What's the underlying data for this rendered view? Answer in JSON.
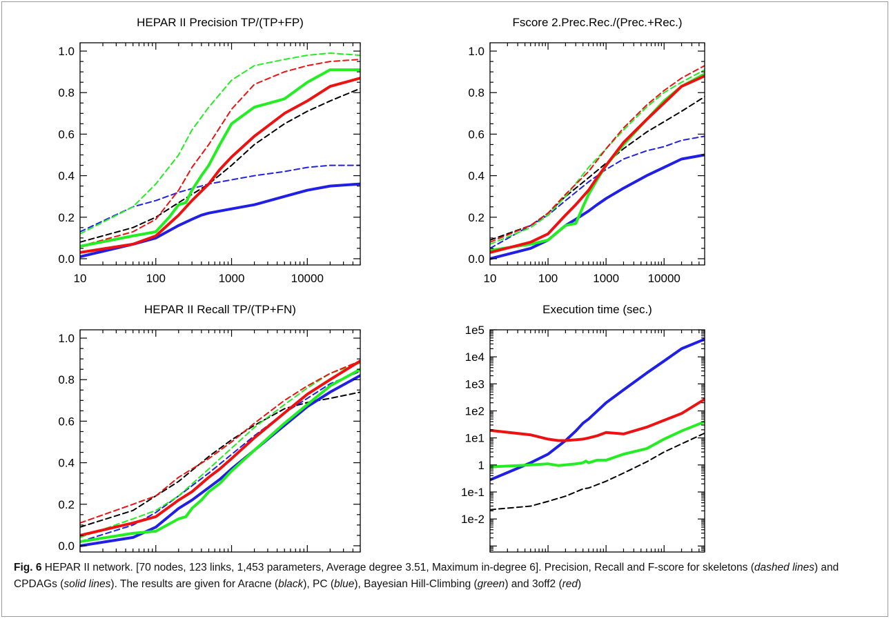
{
  "caption": {
    "label": "Fig. 6",
    "p1": " HEPAR II network. [70 nodes, 123 links, 1,453 parameters, Average degree 3.51, Maximum in-degree 6]. Precision, Recall and F-score for skeletons (",
    "e1": "dashed lines",
    "p2": ") and CPDAGs (",
    "e2": "solid lines",
    "p3": "). The results are given for Aracne (",
    "e3": "black",
    "p4": "), PC (",
    "e4": "blue",
    "p5": "), Bayesian Hill-Climbing (",
    "e5": "green",
    "p6": ") and 3off2 (",
    "e6": "red",
    "p7": ")"
  },
  "colors": {
    "black": "#000000",
    "blue": "#1f1fe6",
    "green": "#22ee22",
    "red": "#ee1111"
  },
  "chart_data": [
    {
      "id": "precision",
      "type": "line",
      "title": "HEPAR II  Precision  TP/(TP+FP)",
      "xscale": "log",
      "xlim": [
        10,
        50000
      ],
      "xticks": [
        10,
        100,
        1000,
        10000
      ],
      "xtick_labels": [
        "10",
        "100",
        "1000",
        "10000"
      ],
      "yscale": "linear",
      "ylim": [
        -0.03,
        1.04
      ],
      "yticks": [
        0,
        0.2,
        0.4,
        0.6,
        0.8,
        1.0
      ],
      "ytick_labels": [
        "0.0",
        "0.2",
        "0.4",
        "0.6",
        "0.8",
        "1.0"
      ],
      "series": [
        {
          "color": "black",
          "style": "dashed",
          "x": [
            10,
            50,
            100,
            200,
            500,
            1000,
            2000,
            5000,
            10000,
            20000,
            50000
          ],
          "y": [
            0.08,
            0.15,
            0.2,
            0.27,
            0.36,
            0.45,
            0.55,
            0.65,
            0.71,
            0.76,
            0.82
          ]
        },
        {
          "color": "blue",
          "style": "dashed",
          "x": [
            10,
            50,
            100,
            200,
            500,
            1000,
            2000,
            5000,
            10000,
            20000,
            50000
          ],
          "y": [
            0.13,
            0.25,
            0.28,
            0.32,
            0.36,
            0.38,
            0.4,
            0.42,
            0.44,
            0.45,
            0.45
          ]
        },
        {
          "color": "green",
          "style": "dashed",
          "x": [
            10,
            50,
            100,
            200,
            300,
            500,
            1000,
            2000,
            5000,
            10000,
            20000,
            50000
          ],
          "y": [
            0.12,
            0.25,
            0.36,
            0.5,
            0.62,
            0.73,
            0.86,
            0.93,
            0.96,
            0.98,
            0.99,
            0.98
          ]
        },
        {
          "color": "red",
          "style": "dashed",
          "x": [
            10,
            50,
            100,
            200,
            300,
            500,
            1000,
            2000,
            5000,
            10000,
            20000,
            50000
          ],
          "y": [
            0.06,
            0.13,
            0.19,
            0.33,
            0.44,
            0.55,
            0.72,
            0.84,
            0.9,
            0.93,
            0.95,
            0.96
          ]
        },
        {
          "color": "blue",
          "style": "solid",
          "x": [
            10,
            50,
            100,
            200,
            300,
            400,
            500,
            700,
            1000,
            2000,
            5000,
            10000,
            20000,
            50000
          ],
          "y": [
            0.01,
            0.07,
            0.1,
            0.16,
            0.19,
            0.21,
            0.22,
            0.23,
            0.24,
            0.26,
            0.3,
            0.33,
            0.35,
            0.36
          ]
        },
        {
          "color": "green",
          "style": "solid",
          "x": [
            10,
            50,
            100,
            150,
            200,
            250,
            300,
            400,
            500,
            700,
            1000,
            2000,
            5000,
            10000,
            20000,
            50000
          ],
          "y": [
            0.06,
            0.11,
            0.13,
            0.2,
            0.26,
            0.27,
            0.33,
            0.4,
            0.45,
            0.55,
            0.65,
            0.73,
            0.77,
            0.85,
            0.91,
            0.91
          ]
        },
        {
          "color": "red",
          "style": "solid",
          "x": [
            10,
            50,
            100,
            200,
            300,
            500,
            700,
            1000,
            2000,
            5000,
            10000,
            20000,
            50000
          ],
          "y": [
            0.03,
            0.07,
            0.11,
            0.21,
            0.28,
            0.36,
            0.43,
            0.49,
            0.59,
            0.7,
            0.76,
            0.83,
            0.87
          ]
        }
      ]
    },
    {
      "id": "fscore",
      "type": "line",
      "title": "Fscore  2.Prec.Rec./(Prec.+Rec.)",
      "xscale": "log",
      "xlim": [
        10,
        50000
      ],
      "xticks": [
        10,
        100,
        1000,
        10000
      ],
      "xtick_labels": [
        "10",
        "100",
        "1000",
        "10000"
      ],
      "yscale": "linear",
      "ylim": [
        -0.03,
        1.04
      ],
      "yticks": [
        0,
        0.2,
        0.4,
        0.6,
        0.8,
        1.0
      ],
      "ytick_labels": [
        "0.0",
        "0.2",
        "0.4",
        "0.6",
        "0.8",
        "1.0"
      ],
      "series": [
        {
          "color": "black",
          "style": "dashed",
          "x": [
            10,
            50,
            100,
            200,
            500,
            1000,
            2000,
            5000,
            10000,
            20000,
            50000
          ],
          "y": [
            0.09,
            0.16,
            0.22,
            0.3,
            0.39,
            0.46,
            0.53,
            0.61,
            0.66,
            0.71,
            0.78
          ]
        },
        {
          "color": "blue",
          "style": "dashed",
          "x": [
            10,
            50,
            100,
            200,
            500,
            1000,
            2000,
            5000,
            10000,
            20000,
            50000
          ],
          "y": [
            0.05,
            0.16,
            0.21,
            0.28,
            0.37,
            0.43,
            0.48,
            0.52,
            0.54,
            0.57,
            0.59
          ]
        },
        {
          "color": "green",
          "style": "dashed",
          "x": [
            10,
            50,
            100,
            200,
            500,
            1000,
            2000,
            5000,
            10000,
            20000,
            50000
          ],
          "y": [
            0.07,
            0.15,
            0.21,
            0.3,
            0.44,
            0.53,
            0.62,
            0.73,
            0.8,
            0.85,
            0.91
          ]
        },
        {
          "color": "red",
          "style": "dashed",
          "x": [
            10,
            50,
            100,
            200,
            500,
            1000,
            2000,
            5000,
            10000,
            20000,
            50000
          ],
          "y": [
            0.08,
            0.16,
            0.22,
            0.31,
            0.42,
            0.53,
            0.63,
            0.74,
            0.81,
            0.87,
            0.93
          ]
        },
        {
          "color": "blue",
          "style": "solid",
          "x": [
            10,
            50,
            100,
            200,
            300,
            500,
            700,
            1000,
            2000,
            5000,
            10000,
            20000,
            50000
          ],
          "y": [
            0.0,
            0.05,
            0.09,
            0.16,
            0.19,
            0.23,
            0.26,
            0.29,
            0.34,
            0.4,
            0.44,
            0.48,
            0.5
          ]
        },
        {
          "color": "green",
          "style": "solid",
          "x": [
            10,
            50,
            100,
            200,
            300,
            400,
            500,
            700,
            1000,
            2000,
            5000,
            10000,
            20000,
            50000
          ],
          "y": [
            0.04,
            0.07,
            0.09,
            0.16,
            0.17,
            0.25,
            0.31,
            0.38,
            0.45,
            0.55,
            0.67,
            0.76,
            0.83,
            0.89
          ]
        },
        {
          "color": "red",
          "style": "solid",
          "x": [
            10,
            50,
            100,
            200,
            300,
            500,
            700,
            1000,
            2000,
            5000,
            10000,
            20000,
            50000
          ],
          "y": [
            0.03,
            0.08,
            0.12,
            0.21,
            0.26,
            0.33,
            0.39,
            0.45,
            0.56,
            0.67,
            0.75,
            0.83,
            0.88
          ]
        }
      ]
    },
    {
      "id": "recall",
      "type": "line",
      "title": "HEPAR II  Recall  TP/(TP+FN)",
      "xscale": "log",
      "xlim": [
        10,
        50000
      ],
      "xticks": [
        10,
        100,
        1000,
        10000
      ],
      "xtick_labels": [
        "10",
        "100",
        "1000",
        "10000"
      ],
      "yscale": "linear",
      "ylim": [
        -0.03,
        1.04
      ],
      "yticks": [
        0,
        0.2,
        0.4,
        0.6,
        0.8,
        1.0
      ],
      "ytick_labels": [
        "0.0",
        "0.2",
        "0.4",
        "0.6",
        "0.8",
        "1.0"
      ],
      "series": [
        {
          "color": "black",
          "style": "dashed",
          "x": [
            10,
            50,
            100,
            200,
            500,
            1000,
            2000,
            5000,
            10000,
            20000,
            50000
          ],
          "y": [
            0.09,
            0.17,
            0.24,
            0.31,
            0.43,
            0.51,
            0.58,
            0.66,
            0.69,
            0.71,
            0.74
          ]
        },
        {
          "color": "blue",
          "style": "dashed",
          "x": [
            10,
            50,
            100,
            200,
            500,
            1000,
            2000,
            5000,
            10000,
            20000,
            50000
          ],
          "y": [
            0.02,
            0.1,
            0.16,
            0.24,
            0.35,
            0.44,
            0.53,
            0.64,
            0.71,
            0.78,
            0.84
          ]
        },
        {
          "color": "green",
          "style": "dashed",
          "x": [
            10,
            50,
            100,
            200,
            500,
            1000,
            2000,
            5000,
            10000,
            20000,
            50000
          ],
          "y": [
            0.04,
            0.13,
            0.17,
            0.24,
            0.37,
            0.47,
            0.57,
            0.68,
            0.76,
            0.83,
            0.88
          ]
        },
        {
          "color": "red",
          "style": "dashed",
          "x": [
            10,
            50,
            100,
            200,
            500,
            1000,
            2000,
            5000,
            10000,
            20000,
            50000
          ],
          "y": [
            0.11,
            0.2,
            0.24,
            0.33,
            0.42,
            0.5,
            0.59,
            0.7,
            0.77,
            0.83,
            0.89
          ]
        },
        {
          "color": "blue",
          "style": "solid",
          "x": [
            10,
            50,
            100,
            200,
            300,
            500,
            700,
            1000,
            2000,
            5000,
            10000,
            20000,
            50000
          ],
          "y": [
            0.0,
            0.04,
            0.09,
            0.18,
            0.22,
            0.28,
            0.32,
            0.37,
            0.46,
            0.58,
            0.67,
            0.74,
            0.82
          ]
        },
        {
          "color": "green",
          "style": "solid",
          "x": [
            10,
            50,
            100,
            200,
            250,
            300,
            400,
            500,
            700,
            1000,
            2000,
            5000,
            10000,
            20000,
            50000
          ],
          "y": [
            0.02,
            0.06,
            0.07,
            0.13,
            0.14,
            0.18,
            0.22,
            0.26,
            0.3,
            0.36,
            0.46,
            0.59,
            0.68,
            0.77,
            0.85
          ]
        },
        {
          "color": "red",
          "style": "solid",
          "x": [
            10,
            50,
            100,
            200,
            300,
            500,
            700,
            1000,
            2000,
            5000,
            10000,
            20000,
            50000
          ],
          "y": [
            0.05,
            0.11,
            0.14,
            0.22,
            0.26,
            0.33,
            0.37,
            0.42,
            0.52,
            0.64,
            0.73,
            0.8,
            0.89
          ]
        }
      ]
    },
    {
      "id": "exectime",
      "type": "line",
      "title": "Execution time (sec.)",
      "xscale": "log",
      "xlim": [
        10,
        50000
      ],
      "xticks": [
        10,
        100,
        1000,
        10000
      ],
      "xtick_labels": [
        "10",
        "100",
        "1000",
        "10000"
      ],
      "yscale": "log",
      "ylim": [
        0.0006,
        100000
      ],
      "yticks": [
        0.01,
        0.1,
        1,
        10,
        100,
        1000,
        10000,
        100000
      ],
      "ytick_labels": [
        "1e-2",
        "1e-1",
        "1",
        "1e1",
        "1e2",
        "1e3",
        "1e4",
        "1e5"
      ],
      "series": [
        {
          "color": "black",
          "style": "dashed",
          "x": [
            10,
            50,
            100,
            200,
            300,
            400,
            500,
            1000,
            2000,
            5000,
            10000,
            20000,
            50000
          ],
          "y": [
            0.022,
            0.03,
            0.045,
            0.07,
            0.1,
            0.13,
            0.14,
            0.25,
            0.5,
            1.3,
            3,
            6,
            15
          ]
        },
        {
          "color": "blue",
          "style": "solid",
          "x": [
            10,
            50,
            100,
            200,
            300,
            400,
            500,
            1000,
            2000,
            5000,
            10000,
            20000,
            50000
          ],
          "y": [
            0.28,
            1.2,
            2.5,
            8,
            18,
            35,
            50,
            200,
            600,
            2500,
            7000,
            20000,
            45000
          ]
        },
        {
          "color": "green",
          "style": "solid",
          "x": [
            10,
            50,
            100,
            150,
            200,
            300,
            400,
            450,
            500,
            700,
            1000,
            2000,
            5000,
            10000,
            20000,
            50000
          ],
          "y": [
            0.85,
            1.0,
            1.1,
            0.95,
            1.0,
            1.1,
            1.2,
            1.4,
            1.2,
            1.5,
            1.5,
            2.5,
            4,
            9,
            18,
            40
          ]
        },
        {
          "color": "red",
          "style": "solid",
          "x": [
            10,
            50,
            100,
            150,
            200,
            300,
            400,
            500,
            700,
            1000,
            2000,
            5000,
            10000,
            20000,
            50000
          ],
          "y": [
            19,
            13,
            9,
            8,
            8,
            8.5,
            9,
            10,
            12,
            16,
            14,
            25,
            45,
            80,
            270
          ]
        }
      ]
    }
  ]
}
